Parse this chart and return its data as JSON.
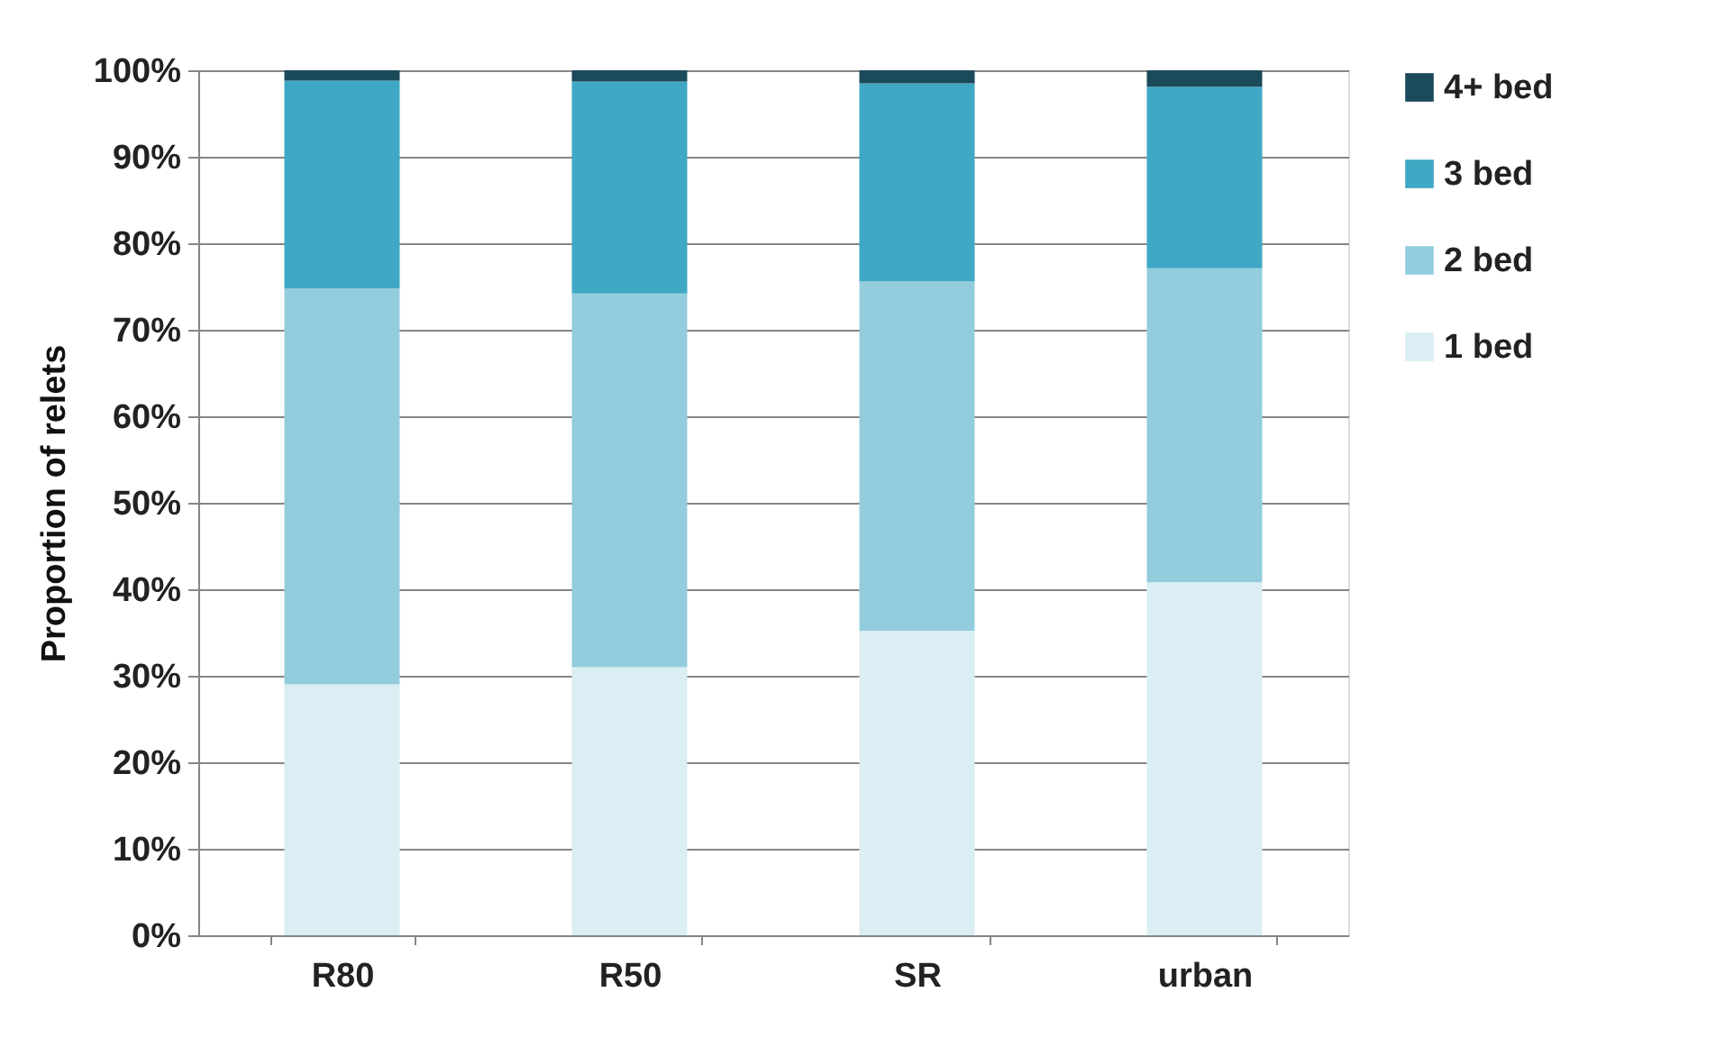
{
  "chart_data": {
    "type": "bar",
    "stacked": true,
    "ylabel": "Proportion of relets",
    "categories": [
      "R80",
      "R50",
      "SR",
      "urban"
    ],
    "series": [
      {
        "name": "1 bed",
        "color": "#daeef3",
        "values": [
          29.0,
          31.0,
          35.2,
          40.8
        ]
      },
      {
        "name": "2 bed",
        "color": "#93cddd",
        "values": [
          45.8,
          43.2,
          40.4,
          36.3
        ]
      },
      {
        "name": "3 bed",
        "color": "#3fa8c4",
        "values": [
          24.0,
          24.5,
          22.9,
          21.0
        ]
      },
      {
        "name": "4+ bed",
        "color": "#1b4a5a",
        "values": [
          1.2,
          1.3,
          1.5,
          1.9
        ]
      }
    ],
    "ylim": [
      0,
      100
    ],
    "yticks": [
      {
        "value": 0,
        "label": "0%"
      },
      {
        "value": 10,
        "label": "10%"
      },
      {
        "value": 20,
        "label": "20%"
      },
      {
        "value": 30,
        "label": "30%"
      },
      {
        "value": 40,
        "label": "40%"
      },
      {
        "value": 50,
        "label": "50%"
      },
      {
        "value": 60,
        "label": "60%"
      },
      {
        "value": 70,
        "label": "70%"
      },
      {
        "value": 80,
        "label": "80%"
      },
      {
        "value": 90,
        "label": "90%"
      },
      {
        "value": 100,
        "label": "100%"
      }
    ],
    "grid": "y",
    "legend": "right"
  }
}
